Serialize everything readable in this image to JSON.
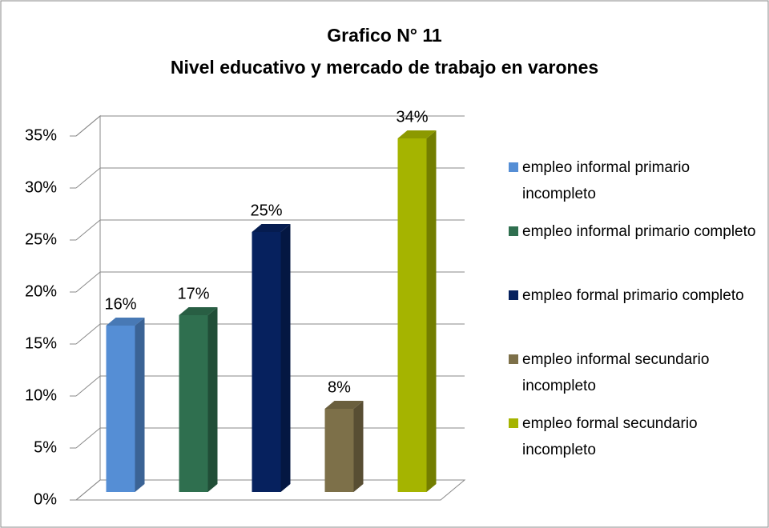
{
  "chart_data": {
    "type": "bar",
    "title": "Grafico N° 11",
    "subtitle": "Nivel educativo y mercado de trabajo en varones",
    "series": [
      {
        "name": "empleo informal primario incompleto",
        "color": "#558ed5",
        "values": [
          16
        ],
        "value_labels": [
          "16%"
        ]
      },
      {
        "name": "empleo informal primario completo",
        "color": "#2f6f4f",
        "values": [
          17
        ],
        "value_labels": [
          "17%"
        ]
      },
      {
        "name": "empleo formal primario completo",
        "color": "#06215e",
        "values": [
          25
        ],
        "value_labels": [
          "25%"
        ]
      },
      {
        "name": "empleo informal secundario incompleto",
        "color": "#7d7049",
        "values": [
          8
        ],
        "value_labels": [
          "8%"
        ]
      },
      {
        "name": "empleo formal secundario incompleto",
        "color": "#a5b400",
        "values": [
          34
        ],
        "value_labels": [
          "34%"
        ]
      }
    ],
    "ylim": [
      0,
      35
    ],
    "yticks": [
      {
        "value": 0,
        "label": "0%"
      },
      {
        "value": 5,
        "label": "5%"
      },
      {
        "value": 10,
        "label": "10%"
      },
      {
        "value": 15,
        "label": "15%"
      },
      {
        "value": 20,
        "label": "20%"
      },
      {
        "value": 25,
        "label": "25%"
      },
      {
        "value": 30,
        "label": "30%"
      },
      {
        "value": 35,
        "label": "35%"
      }
    ],
    "grid": true,
    "legend": "right"
  }
}
